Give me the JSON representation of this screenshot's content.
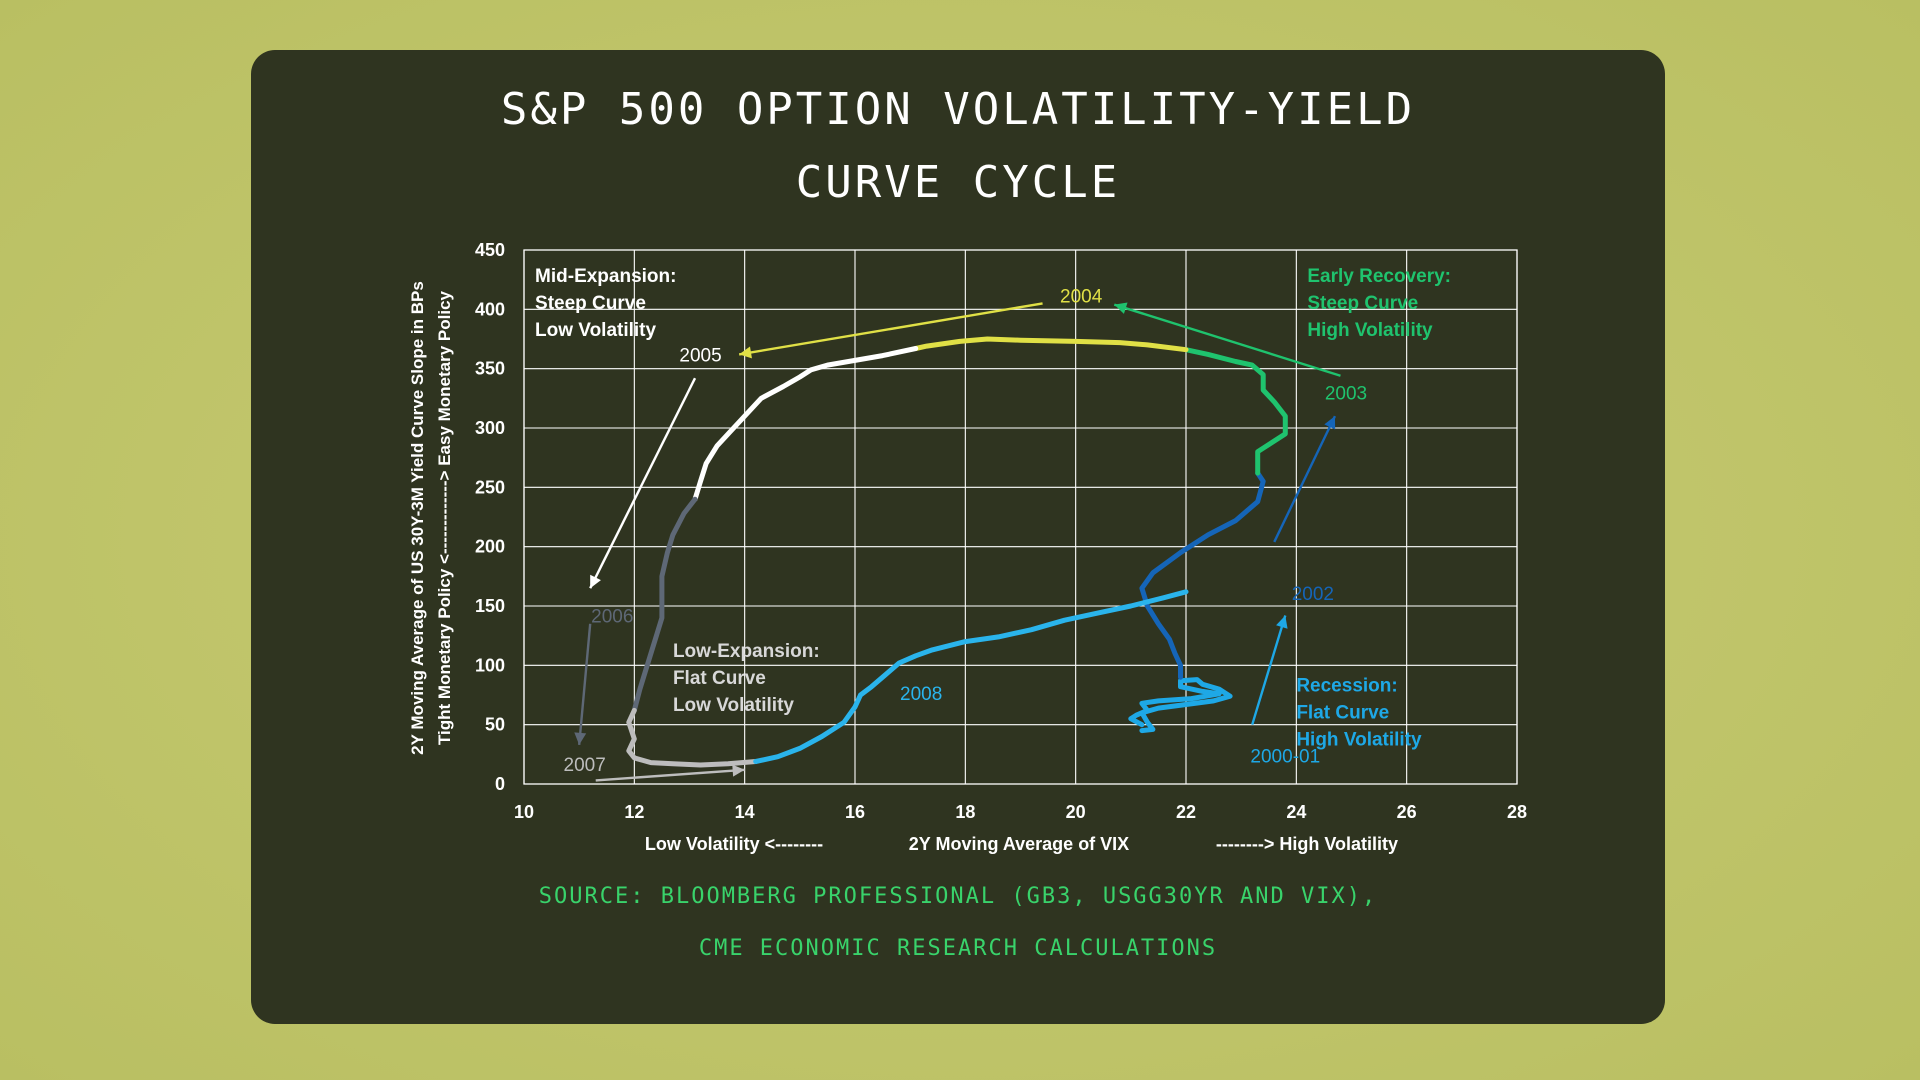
{
  "title_line1": "S&P 500 OPTION VOLATILITY-YIELD",
  "title_line2": "CURVE CYCLE",
  "source_line1": "SOURCE: BLOOMBERG PROFESSIONAL (GB3, USGG30YR AND VIX),",
  "source_line2": "CME ECONOMIC RESEARCH CALCULATIONS",
  "colors": {
    "background": "#c2c56b",
    "card": "#2f3420",
    "grid": "#ffffff",
    "accent_green": "#39d36b"
  },
  "chart_data": {
    "type": "line",
    "xlabel": "2Y Moving Average of VIX",
    "xlabel_left": "Low Volatility <--------",
    "xlabel_right": "--------> High Volatility",
    "ylabel_line1": "2Y Moving Average of US 30Y-3M Yield Curve Slope in BPs",
    "ylabel_line2": "Tight Monetary Policy <-------------> Easy Monetary Policy",
    "xlim": [
      10,
      28
    ],
    "ylim": [
      0,
      450
    ],
    "xticks": [
      "10",
      "12",
      "14",
      "16",
      "18",
      "20",
      "22",
      "24",
      "26",
      "28"
    ],
    "yticks": [
      "0",
      "50",
      "100",
      "150",
      "200",
      "250",
      "300",
      "350",
      "400",
      "450"
    ],
    "grid": true,
    "series": [
      {
        "name": "2000-01",
        "color": "#1ea8e6",
        "points": [
          [
            21.2,
            45
          ],
          [
            21.4,
            46
          ],
          [
            21.3,
            52
          ],
          [
            21.2,
            60
          ],
          [
            21.5,
            64
          ],
          [
            22.0,
            67
          ],
          [
            22.5,
            70
          ],
          [
            22.8,
            74
          ],
          [
            22.6,
            80
          ],
          [
            22.3,
            84
          ],
          [
            22.2,
            88
          ],
          [
            21.9,
            87
          ],
          [
            21.9,
            82
          ],
          [
            22.3,
            78
          ],
          [
            22.6,
            76
          ],
          [
            22.1,
            72
          ],
          [
            21.5,
            70
          ],
          [
            21.2,
            68
          ],
          [
            21.3,
            62
          ],
          [
            21.1,
            58
          ],
          [
            21.0,
            55
          ],
          [
            21.2,
            50
          ]
        ]
      },
      {
        "name": "2002",
        "color": "#1565b8",
        "points": [
          [
            21.9,
            90
          ],
          [
            21.9,
            100
          ],
          [
            21.8,
            110
          ],
          [
            21.7,
            122
          ],
          [
            21.5,
            135
          ],
          [
            21.3,
            150
          ],
          [
            21.2,
            165
          ],
          [
            21.4,
            178
          ],
          [
            21.9,
            195
          ],
          [
            22.4,
            210
          ],
          [
            22.9,
            222
          ],
          [
            23.3,
            238
          ],
          [
            23.4,
            255
          ],
          [
            23.3,
            262
          ]
        ]
      },
      {
        "name": "2003",
        "color": "#1fc36e",
        "points": [
          [
            23.3,
            262
          ],
          [
            23.3,
            280
          ],
          [
            23.8,
            295
          ],
          [
            23.8,
            310
          ],
          [
            23.6,
            322
          ],
          [
            23.4,
            332
          ],
          [
            23.4,
            345
          ],
          [
            23.2,
            353
          ],
          [
            22.9,
            356
          ],
          [
            22.4,
            362
          ],
          [
            22.0,
            366
          ]
        ]
      },
      {
        "name": "2004",
        "color": "#e0e046",
        "points": [
          [
            22.0,
            366
          ],
          [
            21.3,
            370
          ],
          [
            20.8,
            372
          ],
          [
            20.0,
            373
          ],
          [
            19.0,
            374
          ],
          [
            18.4,
            375
          ],
          [
            17.9,
            373
          ],
          [
            17.3,
            369
          ],
          [
            17.1,
            367
          ]
        ]
      },
      {
        "name": "2005",
        "color": "#ffffff",
        "points": [
          [
            17.1,
            367
          ],
          [
            16.5,
            361
          ],
          [
            16.0,
            357
          ],
          [
            15.5,
            353
          ],
          [
            15.2,
            349
          ],
          [
            15.0,
            343
          ],
          [
            14.7,
            335
          ],
          [
            14.3,
            325
          ],
          [
            14.0,
            310
          ],
          [
            13.7,
            295
          ],
          [
            13.5,
            285
          ],
          [
            13.3,
            270
          ],
          [
            13.2,
            255
          ],
          [
            13.1,
            240
          ]
        ]
      },
      {
        "name": "2006",
        "color": "#5e6876",
        "points": [
          [
            13.1,
            240
          ],
          [
            12.9,
            228
          ],
          [
            12.7,
            210
          ],
          [
            12.6,
            195
          ],
          [
            12.5,
            175
          ],
          [
            12.5,
            155
          ],
          [
            12.5,
            140
          ],
          [
            12.4,
            125
          ],
          [
            12.3,
            110
          ],
          [
            12.2,
            95
          ],
          [
            12.1,
            80
          ],
          [
            12.0,
            62
          ]
        ]
      },
      {
        "name": "2007",
        "color": "#bdbdbd",
        "points": [
          [
            12.0,
            62
          ],
          [
            11.9,
            52
          ],
          [
            12.0,
            38
          ],
          [
            11.9,
            28
          ],
          [
            12.0,
            22
          ],
          [
            12.3,
            18
          ],
          [
            12.7,
            17
          ],
          [
            13.2,
            16
          ],
          [
            13.7,
            17
          ],
          [
            14.2,
            19
          ]
        ]
      },
      {
        "name": "2008",
        "color": "#2ab4ec",
        "points": [
          [
            14.2,
            19
          ],
          [
            14.6,
            23
          ],
          [
            15.0,
            30
          ],
          [
            15.4,
            40
          ],
          [
            15.8,
            52
          ],
          [
            16.0,
            65
          ],
          [
            16.1,
            75
          ],
          [
            16.3,
            82
          ],
          [
            16.5,
            90
          ],
          [
            16.8,
            102
          ],
          [
            17.1,
            108
          ],
          [
            17.4,
            113
          ],
          [
            18.0,
            120
          ],
          [
            18.6,
            124
          ],
          [
            19.2,
            130
          ],
          [
            19.8,
            138
          ],
          [
            20.4,
            144
          ],
          [
            21.0,
            150
          ],
          [
            21.6,
            157
          ],
          [
            22.0,
            162
          ]
        ]
      }
    ],
    "year_labels": [
      {
        "text": "2000-01",
        "x": 23.8,
        "y": 23,
        "color": "#1ea8e6"
      },
      {
        "text": "2002",
        "x": 24.3,
        "y": 160,
        "color": "#1565b8"
      },
      {
        "text": "2003",
        "x": 24.9,
        "y": 329,
        "color": "#1fc36e"
      },
      {
        "text": "2004",
        "x": 20.1,
        "y": 411,
        "color": "#e0e046"
      },
      {
        "text": "2005",
        "x": 13.2,
        "y": 361,
        "color": "#ffffff"
      },
      {
        "text": "2006",
        "x": 11.6,
        "y": 141,
        "color": "#5e6876"
      },
      {
        "text": "2007",
        "x": 11.1,
        "y": 16,
        "color": "#bdbdbd"
      },
      {
        "text": "2008",
        "x": 17.2,
        "y": 76,
        "color": "#2ab4ec"
      }
    ],
    "arrows": [
      {
        "from": [
          23.2,
          50
        ],
        "to": [
          23.8,
          142
        ],
        "color": "#1ea8e6"
      },
      {
        "from": [
          23.6,
          204
        ],
        "to": [
          24.7,
          310
        ],
        "color": "#1565b8"
      },
      {
        "from": [
          24.8,
          344
        ],
        "to": [
          20.7,
          404
        ],
        "color": "#1fc36e"
      },
      {
        "from": [
          19.4,
          405
        ],
        "to": [
          13.9,
          362
        ],
        "color": "#e0e046"
      },
      {
        "from": [
          13.1,
          342
        ],
        "to": [
          11.2,
          165
        ],
        "color": "#ffffff"
      },
      {
        "from": [
          11.2,
          135
        ],
        "to": [
          11.0,
          33
        ],
        "color": "#5e6876"
      },
      {
        "from": [
          11.3,
          3
        ],
        "to": [
          14.0,
          12
        ],
        "color": "#bdbdbd"
      }
    ],
    "annotations": [
      {
        "lines": [
          "Mid-Expansion:",
          "Steep Curve",
          "Low Volatility"
        ],
        "x": 10.2,
        "y": 428,
        "color": "#ffffff"
      },
      {
        "lines": [
          "Early Recovery:",
          "Steep Curve",
          "High Volatility"
        ],
        "x": 24.2,
        "y": 428,
        "color": "#1fc36e"
      },
      {
        "lines": [
          "Low-Expansion:",
          "Flat Curve",
          "Low Volatility"
        ],
        "x": 12.7,
        "y": 112,
        "color": "#d8d8d8"
      },
      {
        "lines": [
          "Recession:",
          "Flat Curve",
          "High Volatility"
        ],
        "x": 24.0,
        "y": 83,
        "color": "#1ea8e6"
      }
    ]
  }
}
